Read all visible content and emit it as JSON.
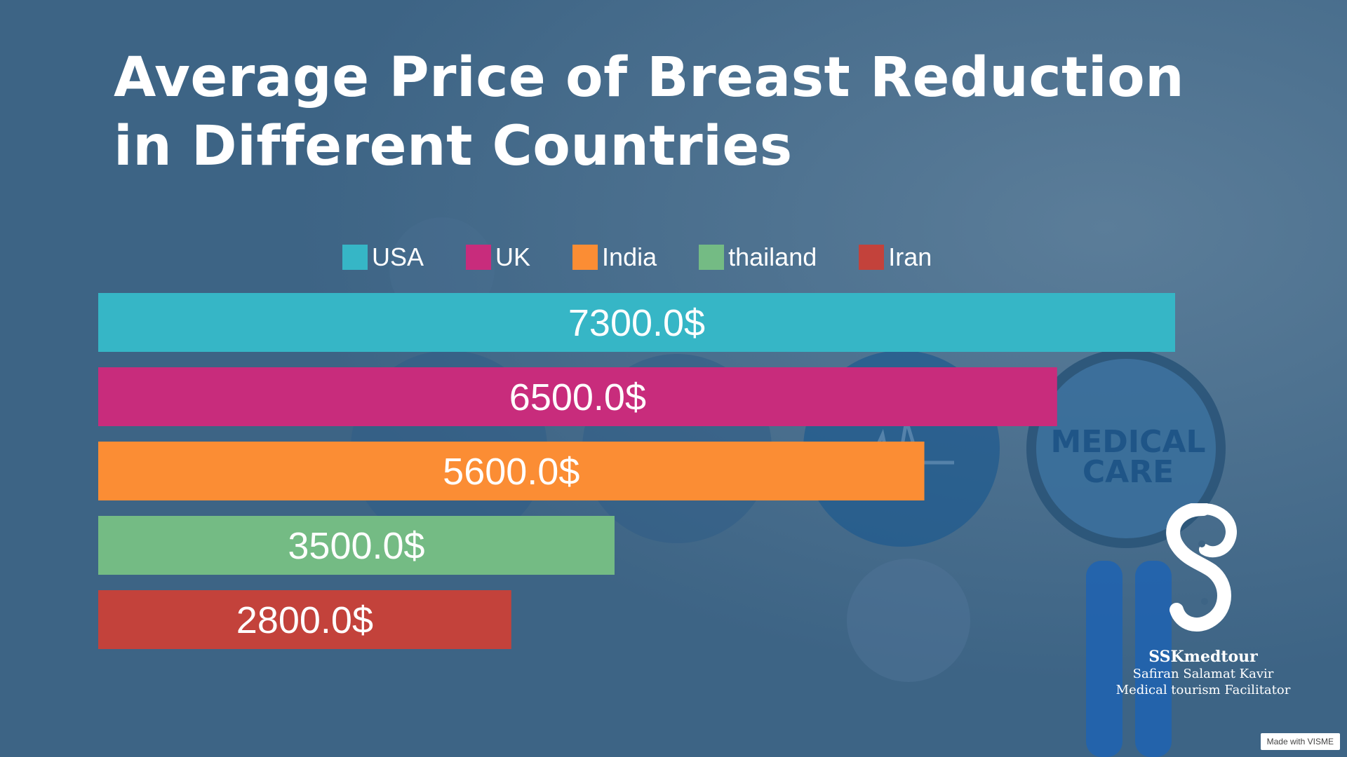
{
  "title": "Average Price of Breast Reduction in Different Countries",
  "colors": {
    "background": "#3d6485",
    "USA": "#36b6c6",
    "UK": "#c82c7c",
    "India": "#fb8d34",
    "thailand": "#74bb84",
    "Iran": "#c3423b"
  },
  "background_badge": {
    "line1": "MEDICAL",
    "line2": "CARE"
  },
  "chart_data": {
    "type": "bar",
    "orientation": "horizontal",
    "title": "Average Price of Breast Reduction in Different Countries",
    "categories": [
      "USA",
      "UK",
      "India",
      "thailand",
      "Iran"
    ],
    "values": [
      7300.0,
      6500.0,
      5600.0,
      3500.0,
      2800.0
    ],
    "data_labels": [
      "7300.0$",
      "6500.0$",
      "5600.0$",
      "3500.0$",
      "2800.0$"
    ],
    "colors": [
      "#36b6c6",
      "#c82c7c",
      "#fb8d34",
      "#74bb84",
      "#c3423b"
    ],
    "legend": [
      "USA",
      "UK",
      "India",
      "thailand",
      "Iran"
    ],
    "legend_position": "top",
    "grid": false,
    "xlabel": "",
    "ylabel": ""
  },
  "logo": {
    "name": "SSKmedtour",
    "line1": "Safiran Salamat Kavir",
    "line2": "Medical tourism Facilitator"
  },
  "badge": "Made with VISME"
}
